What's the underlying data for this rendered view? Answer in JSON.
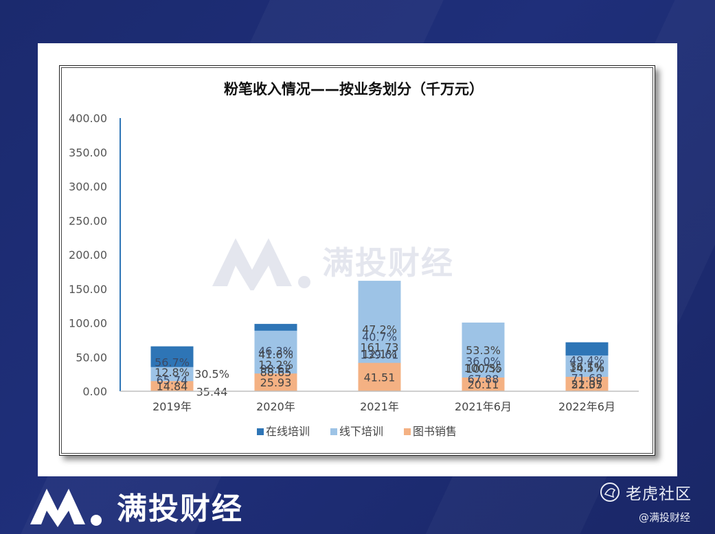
{
  "chart_data": {
    "type": "bar",
    "stacked": true,
    "title": "粉笔收入情况——按业务划分（千万元）",
    "categories": [
      "2019年",
      "2020年",
      "2021年",
      "2021年6月",
      "2022年6月"
    ],
    "ylim": [
      0,
      400
    ],
    "yticks": [
      "0.00",
      "50.00",
      "100.00",
      "150.00",
      "200.00",
      "250.00",
      "300.00",
      "350.00",
      "400.00"
    ],
    "grid": false,
    "legend_position": "bottom",
    "series": [
      {
        "name": "在线培训",
        "color": "#2e75b6",
        "values": [
          65.74,
          98.62,
          139.61,
          67.88,
          71.68
        ],
        "value_labels": [
          "65.74",
          "98.62",
          "139.61",
          "67.88",
          "71.68"
        ],
        "pct_labels": [
          "56.7%",
          "46.3%",
          "40.7%",
          "36.0%",
          "49.4%"
        ]
      },
      {
        "name": "线下培训",
        "color": "#9dc3e6",
        "values": [
          35.44,
          88.65,
          161.73,
          100.55,
          52.35
        ],
        "value_labels": [
          "35.44",
          "88.65",
          "161.73",
          "100.55",
          "52.35"
        ],
        "pct_labels": [
          "30.5%",
          "41.6%",
          "47.2%",
          "53.3%",
          "36.1%"
        ]
      },
      {
        "name": "图书销售",
        "color": "#f4b183",
        "values": [
          14.84,
          25.93,
          41.51,
          20.11,
          21.07
        ],
        "value_labels": [
          "14.84",
          "25.93",
          "41.51",
          "20.11",
          "21.07"
        ],
        "pct_labels": [
          "12.8%",
          "12.2%",
          "12.1%",
          "10.7%",
          "14.5%"
        ]
      }
    ]
  },
  "watermark": {
    "text": "满投财经"
  },
  "footer": {
    "brand": "满投财经",
    "community": "老虎社区",
    "handle": "@满投财经"
  }
}
